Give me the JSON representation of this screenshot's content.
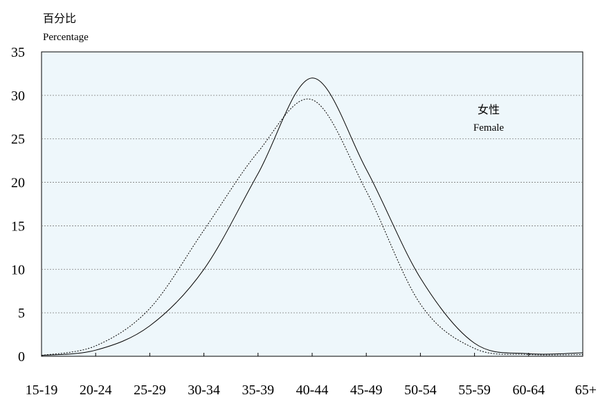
{
  "chart_data": {
    "type": "line",
    "ylabel_cn": "百分比",
    "ylabel_en": "Percentage",
    "annotation_cn": "女性",
    "annotation_en": "Female",
    "categories": [
      "15-19",
      "20-24",
      "25-29",
      "30-34",
      "35-39",
      "40-44",
      "45-49",
      "50-54",
      "55-59",
      "60-64",
      "65+"
    ],
    "ylim": [
      0,
      35
    ],
    "yticks": [
      0,
      5,
      10,
      15,
      20,
      25,
      30,
      35
    ],
    "grid": true,
    "plot_background": "#eef7fb",
    "series": [
      {
        "style": "solid",
        "color": "#000000",
        "values": [
          0.1,
          0.7,
          3.5,
          10,
          21,
          32,
          21.5,
          9,
          1.5,
          0.3,
          0.4
        ]
      },
      {
        "style": "dotted",
        "color": "#000000",
        "values": [
          0.1,
          1.2,
          5.5,
          14.5,
          23.5,
          29.5,
          19,
          6,
          0.9,
          0.2,
          0.2
        ]
      }
    ]
  }
}
